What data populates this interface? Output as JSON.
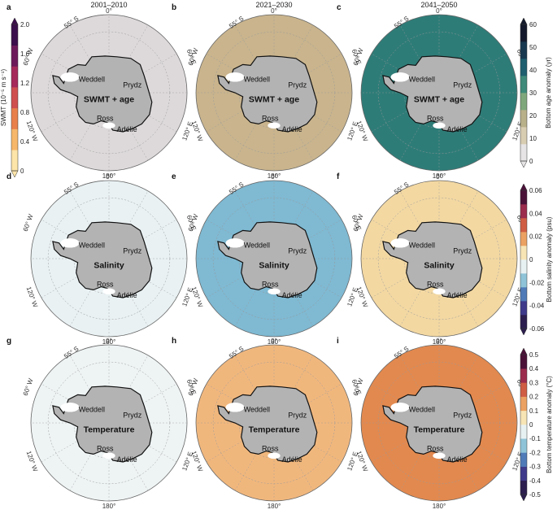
{
  "columns": [
    "2001–2010",
    "2021–2030",
    "2041–2050"
  ],
  "panel_letters": [
    "a",
    "b",
    "c",
    "d",
    "e",
    "f",
    "g",
    "h",
    "i"
  ],
  "rows": [
    {
      "center_label": "SWMT + age",
      "colorbar_left": {
        "label": "SWMT (10⁻⁵ m s⁻¹)",
        "ticks": [
          "2.0",
          "1.6",
          "1.2",
          "0.8",
          "0.4",
          "0"
        ],
        "colors": [
          "#fde4a8",
          "#f6b76a",
          "#e8804c",
          "#cf4f4f",
          "#a5295a",
          "#6d1a5a",
          "#3b0f4b"
        ]
      },
      "colorbar_right": {
        "label": "Bottom age anomaly (yr)",
        "ticks": [
          "60",
          "50",
          "40",
          "30",
          "20",
          "10",
          "0"
        ],
        "colors": [
          "#e6e4e4",
          "#d8cdb1",
          "#b8b089",
          "#7fa77c",
          "#3f8a7a",
          "#1f5f6f",
          "#17384f",
          "#141a2c"
        ]
      }
    },
    {
      "center_label": "Salinity",
      "colorbar_right": {
        "label": "Bottom salinity anomaly (psu)",
        "ticks": [
          "0.06",
          "0.04",
          "0.02",
          "0",
          "-0.02",
          "-0.04",
          "-0.06"
        ],
        "colors": [
          "#2c1e4e",
          "#3f3a8a",
          "#4f7bb8",
          "#8fc4d8",
          "#e8f1f2",
          "#f7e5b6",
          "#eba162",
          "#cf5d44",
          "#9b2c4d",
          "#4b1238"
        ]
      }
    },
    {
      "center_label": "Temperature",
      "colorbar_right": {
        "label": "Bottom temperature anomaly (°C)",
        "ticks": [
          "0.5",
          "0.4",
          "0.3",
          "0.2",
          "0.1",
          "0",
          "-0.1",
          "-0.2",
          "-0.3",
          "-0.4",
          "-0.5"
        ],
        "colors": [
          "#2c1e4e",
          "#3f3a8a",
          "#4f7bb8",
          "#8fc4d8",
          "#e8f1f2",
          "#f7e5b6",
          "#eba162",
          "#cf5d44",
          "#9b2c4d",
          "#4b1238"
        ]
      }
    }
  ],
  "map_labels": {
    "lat": "55° S",
    "top_lon": "0°",
    "bottom_lon": "180°",
    "left_upper": "60° W",
    "left_lower": "120° W",
    "right_upper": "60° E",
    "right_lower": "120° E",
    "regions": [
      "Weddell",
      "Prydz",
      "Ross",
      "Adélie"
    ]
  },
  "fills": {
    "row1": [
      "#ddd9da",
      "#c9b48d",
      "#2e7c78"
    ],
    "row2": [
      "#e9f1f3",
      "#7fb9d2",
      "#f3d8a2"
    ],
    "row3": [
      "#eef3f4",
      "#f0b77d",
      "#e2894f"
    ]
  },
  "continent_color": "#b3b3b3"
}
